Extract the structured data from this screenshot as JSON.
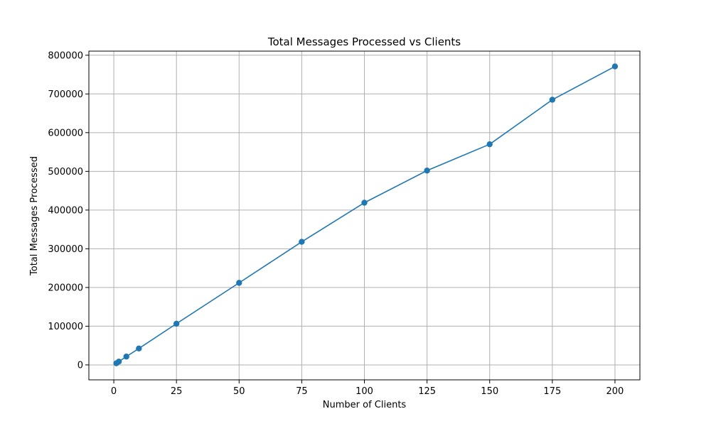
{
  "chart_data": {
    "type": "line",
    "title": "Total Messages Processed vs Clients",
    "xlabel": "Number of Clients",
    "ylabel": "Total Messages Processed",
    "xlim": [
      -9.95,
      209.95
    ],
    "ylim": [
      -38600,
      810600
    ],
    "xticks": [
      0,
      25,
      50,
      75,
      100,
      125,
      150,
      175,
      200
    ],
    "xtick_labels": [
      "0",
      "25",
      "50",
      "75",
      "100",
      "125",
      "150",
      "175",
      "200"
    ],
    "yticks": [
      0,
      100000,
      200000,
      300000,
      400000,
      500000,
      600000,
      700000,
      800000
    ],
    "ytick_labels": [
      "0",
      "100000",
      "200000",
      "300000",
      "400000",
      "500000",
      "600000",
      "700000",
      "800000"
    ],
    "grid": true,
    "series": [
      {
        "name": "Total Messages Processed",
        "color": "#1f77b4",
        "marker": "circle",
        "x": [
          1,
          2,
          5,
          10,
          25,
          50,
          75,
          100,
          125,
          150,
          175,
          200
        ],
        "y": [
          4200,
          8500,
          21500,
          42500,
          106500,
          212000,
          318000,
          419000,
          502000,
          570000,
          685000,
          771000
        ]
      }
    ]
  }
}
